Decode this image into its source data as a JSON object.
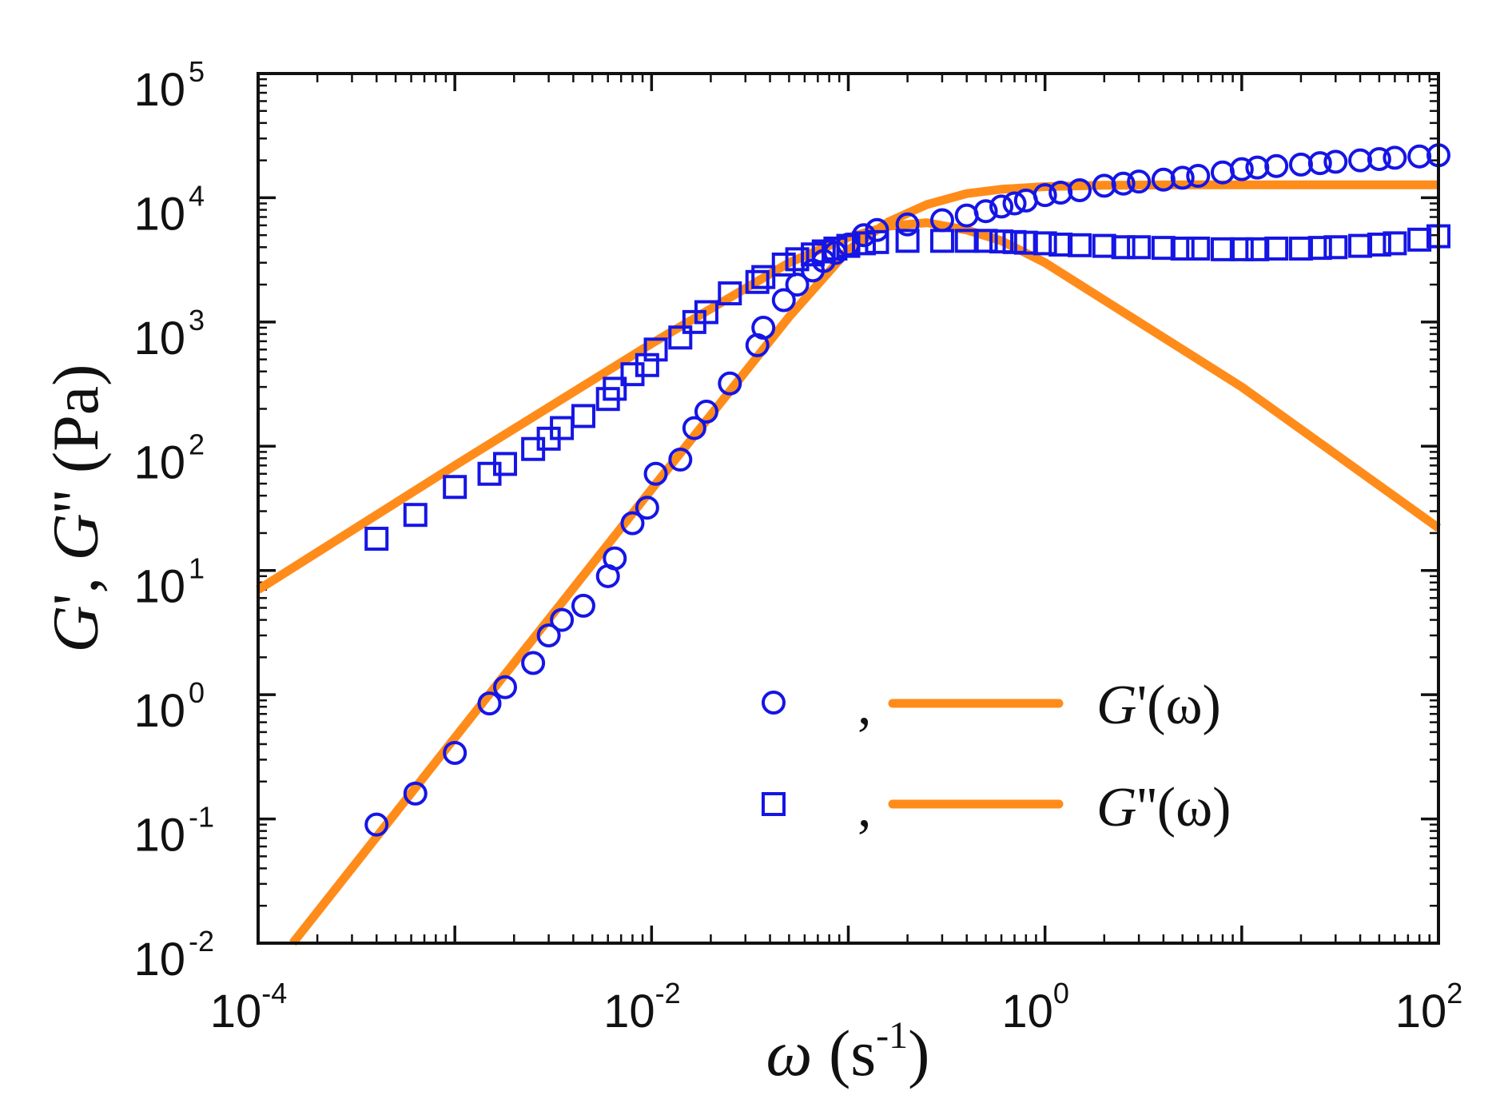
{
  "chart_data": {
    "type": "scatter",
    "title": "",
    "x_scale": "log",
    "y_scale": "log",
    "xlim": [
      0.0001,
      100
    ],
    "ylim": [
      0.01,
      100000
    ],
    "x_ticks": [
      {
        "value": 0.0001,
        "base": "10",
        "exp": "-4"
      },
      {
        "value": 0.01,
        "base": "10",
        "exp": "-2"
      },
      {
        "value": 1,
        "base": "10",
        "exp": "0"
      },
      {
        "value": 100,
        "base": "10",
        "exp": "2"
      }
    ],
    "y_ticks": [
      {
        "value": 0.01,
        "base": "10",
        "exp": "-2"
      },
      {
        "value": 0.1,
        "base": "10",
        "exp": "-1"
      },
      {
        "value": 1,
        "base": "10",
        "exp": "0"
      },
      {
        "value": 10,
        "base": "10",
        "exp": "1"
      },
      {
        "value": 100,
        "base": "10",
        "exp": "2"
      },
      {
        "value": 1000,
        "base": "10",
        "exp": "3"
      },
      {
        "value": 10000,
        "base": "10",
        "exp": "4"
      },
      {
        "value": 100000,
        "base": "10",
        "exp": "5"
      }
    ],
    "xlabel": {
      "symbol": "ω",
      "unit_open": " (s",
      "unit_exp": "-1",
      "unit_close": ")"
    },
    "ylabel": {
      "g1": "G",
      "p1": "', ",
      "g2": "G",
      "p2": "'' (Pa)"
    },
    "legend": {
      "placement": "lower-right",
      "entries": [
        {
          "marker": "circle",
          "sep": ",",
          "g": "G",
          "rest": "'(ω)"
        },
        {
          "marker": "square",
          "sep": ",",
          "g": "G",
          "rest": "''(ω)"
        }
      ]
    },
    "colors": {
      "marker": "#1515e6",
      "line": "#ff8c1a",
      "axis": "#111111"
    },
    "series": [
      {
        "name": "G' data",
        "marker": "circle",
        "x": [
          0.0004,
          0.00063,
          0.001,
          0.0015,
          0.0018,
          0.0025,
          0.003,
          0.0035,
          0.0045,
          0.006,
          0.0065,
          0.008,
          0.0095,
          0.0105,
          0.014,
          0.0165,
          0.019,
          0.025,
          0.0345,
          0.037,
          0.047,
          0.055,
          0.066,
          0.075,
          0.086,
          0.1,
          0.12,
          0.14,
          0.2,
          0.3,
          0.4,
          0.5,
          0.6,
          0.7,
          0.8,
          1.0,
          1.2,
          1.5,
          2,
          2.5,
          3,
          4,
          5,
          6,
          8,
          10,
          12,
          15,
          20,
          25,
          30,
          40,
          50,
          60,
          80,
          100
        ],
        "y": [
          0.09,
          0.16,
          0.34,
          0.85,
          1.15,
          1.8,
          3.0,
          4.0,
          5.2,
          9.0,
          12.5,
          24,
          32,
          60,
          78,
          140,
          190,
          320,
          650,
          900,
          1500,
          2000,
          2600,
          3100,
          3600,
          4200,
          5000,
          5500,
          6100,
          6600,
          7200,
          7800,
          8500,
          9000,
          9500,
          10500,
          11000,
          11500,
          12500,
          13000,
          13500,
          14000,
          14500,
          15000,
          16000,
          17000,
          17500,
          18000,
          18500,
          19000,
          19500,
          20000,
          20500,
          21000,
          21500,
          22000
        ]
      },
      {
        "name": "G'' data",
        "marker": "square",
        "x": [
          0.0004,
          0.00063,
          0.001,
          0.0015,
          0.0018,
          0.0025,
          0.003,
          0.0035,
          0.0045,
          0.006,
          0.0065,
          0.008,
          0.0095,
          0.0105,
          0.014,
          0.0165,
          0.019,
          0.025,
          0.0345,
          0.037,
          0.047,
          0.055,
          0.066,
          0.075,
          0.086,
          0.1,
          0.12,
          0.14,
          0.2,
          0.3,
          0.4,
          0.5,
          0.6,
          0.7,
          0.8,
          1.0,
          1.2,
          1.5,
          2,
          2.5,
          3,
          4,
          5,
          6,
          8,
          10,
          12,
          15,
          20,
          25,
          30,
          40,
          50,
          60,
          80,
          100
        ],
        "y": [
          18,
          28,
          47,
          60,
          72,
          95,
          115,
          140,
          175,
          240,
          290,
          380,
          450,
          600,
          750,
          1000,
          1200,
          1700,
          2100,
          2300,
          2900,
          3200,
          3500,
          3700,
          3900,
          4100,
          4300,
          4400,
          4500,
          4500,
          4500,
          4500,
          4450,
          4400,
          4350,
          4300,
          4200,
          4150,
          4100,
          4000,
          4000,
          3950,
          3900,
          3900,
          3850,
          3850,
          3850,
          3900,
          3900,
          3950,
          4000,
          4100,
          4200,
          4300,
          4600,
          4900
        ]
      },
      {
        "name": "G'(ω) fit",
        "line": true,
        "x": [
          0.00015,
          0.001,
          0.01,
          0.05,
          0.1,
          0.16,
          0.25,
          0.4,
          0.6,
          1.0,
          2,
          5,
          10,
          100
        ],
        "y": [
          0.01,
          0.45,
          45,
          1100,
          3800,
          6400,
          8800,
          10800,
          11700,
          12300,
          12600,
          12700,
          12700,
          12700
        ]
      },
      {
        "name": "G''(ω) fit",
        "line": true,
        "x": [
          0.0001,
          0.001,
          0.01,
          0.05,
          0.1,
          0.16,
          0.25,
          0.4,
          0.6,
          1,
          10,
          100
        ],
        "y": [
          7,
          70,
          670,
          3000,
          4800,
          5900,
          6300,
          5500,
          4500,
          3000,
          300,
          22
        ]
      }
    ]
  }
}
